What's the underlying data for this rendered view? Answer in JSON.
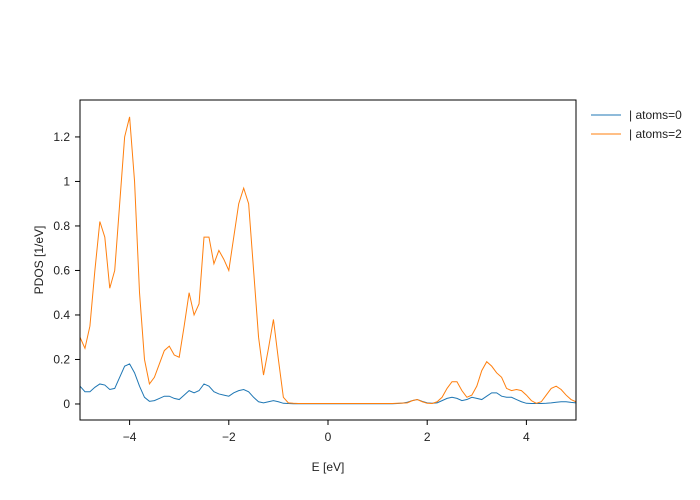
{
  "chart_data": {
    "type": "line",
    "xlabel": "E [eV]",
    "ylabel": "PDOS [1/eV]",
    "x": [
      -5,
      -4.9,
      -4.8,
      -4.7,
      -4.6,
      -4.5,
      -4.4,
      -4.3,
      -4.2,
      -4.1,
      -4,
      -3.9,
      -3.8,
      -3.7,
      -3.6,
      -3.5,
      -3.4,
      -3.3,
      -3.2,
      -3.1,
      -3,
      -2.9,
      -2.8,
      -2.7,
      -2.6,
      -2.5,
      -2.4,
      -2.3,
      -2.2,
      -2.1,
      -2,
      -1.9,
      -1.8,
      -1.7,
      -1.6,
      -1.5,
      -1.4,
      -1.3,
      -1.2,
      -1.1,
      -1,
      -0.9,
      -0.8,
      -0.7,
      -0.6,
      -0.5,
      -0.4,
      -0.3,
      -0.2,
      -0.1,
      0,
      0.1,
      0.2,
      0.3,
      0.4,
      0.5,
      0.6,
      0.7,
      0.8,
      0.9,
      1,
      1.1,
      1.2,
      1.3,
      1.4,
      1.5,
      1.6,
      1.7,
      1.8,
      1.9,
      2,
      2.1,
      2.2,
      2.3,
      2.4,
      2.5,
      2.6,
      2.7,
      2.8,
      2.9,
      3,
      3.1,
      3.2,
      3.3,
      3.4,
      3.5,
      3.6,
      3.7,
      3.8,
      3.9,
      4,
      4.1,
      4.2,
      4.3,
      4.4,
      4.5,
      4.6,
      4.7,
      4.8,
      4.9,
      5
    ],
    "series": [
      {
        "name": "| atoms=0",
        "color": "#1f77b4",
        "values": [
          0.08,
          0.055,
          0.055,
          0.075,
          0.09,
          0.085,
          0.065,
          0.07,
          0.12,
          0.17,
          0.18,
          0.14,
          0.08,
          0.03,
          0.012,
          0.015,
          0.025,
          0.035,
          0.035,
          0.025,
          0.02,
          0.04,
          0.06,
          0.05,
          0.06,
          0.09,
          0.08,
          0.055,
          0.045,
          0.04,
          0.035,
          0.05,
          0.06,
          0.065,
          0.055,
          0.03,
          0.01,
          0.005,
          0.01,
          0.015,
          0.01,
          0.003,
          0.002,
          0.001,
          0.001,
          0.001,
          0.001,
          0.001,
          0.001,
          0.001,
          0.001,
          0.001,
          0.001,
          0.001,
          0.001,
          0.001,
          0.001,
          0.001,
          0.001,
          0.001,
          0.001,
          0.001,
          0.001,
          0.001,
          0.002,
          0.004,
          0.008,
          0.015,
          0.02,
          0.012,
          0.005,
          0.003,
          0.005,
          0.015,
          0.025,
          0.03,
          0.025,
          0.015,
          0.02,
          0.03,
          0.025,
          0.02,
          0.035,
          0.05,
          0.05,
          0.035,
          0.03,
          0.03,
          0.02,
          0.01,
          0.003,
          0.002,
          0.002,
          0.002,
          0.003,
          0.005,
          0.008,
          0.01,
          0.01,
          0.007,
          0.005
        ]
      },
      {
        "name": "| atoms=2",
        "color": "#ff7f0e",
        "values": [
          0.3,
          0.25,
          0.35,
          0.6,
          0.82,
          0.75,
          0.52,
          0.6,
          0.9,
          1.2,
          1.29,
          1.0,
          0.5,
          0.2,
          0.09,
          0.12,
          0.18,
          0.24,
          0.26,
          0.22,
          0.21,
          0.35,
          0.5,
          0.4,
          0.45,
          0.75,
          0.75,
          0.63,
          0.69,
          0.65,
          0.6,
          0.75,
          0.9,
          0.97,
          0.9,
          0.6,
          0.3,
          0.13,
          0.25,
          0.38,
          0.2,
          0.03,
          0.005,
          0.003,
          0.002,
          0.002,
          0.002,
          0.002,
          0.002,
          0.002,
          0.002,
          0.002,
          0.002,
          0.002,
          0.002,
          0.002,
          0.002,
          0.002,
          0.002,
          0.002,
          0.002,
          0.002,
          0.002,
          0.002,
          0.003,
          0.004,
          0.005,
          0.015,
          0.02,
          0.01,
          0.003,
          0.002,
          0.01,
          0.03,
          0.07,
          0.1,
          0.1,
          0.06,
          0.03,
          0.04,
          0.08,
          0.15,
          0.19,
          0.17,
          0.14,
          0.12,
          0.07,
          0.06,
          0.065,
          0.06,
          0.04,
          0.015,
          0.003,
          0.01,
          0.04,
          0.07,
          0.08,
          0.065,
          0.04,
          0.02,
          0.01
        ]
      }
    ],
    "xlim": [
      -5,
      5
    ],
    "ylim": [
      -0.072,
      1.366
    ],
    "xticks": [
      {
        "value": -4,
        "label": "−4"
      },
      {
        "value": -2,
        "label": "−2"
      },
      0,
      2,
      4
    ],
    "yticks": [
      0,
      0.2,
      0.4,
      0.6,
      0.8,
      1,
      1.2
    ],
    "grid": false,
    "legend": "outside-top-right"
  }
}
